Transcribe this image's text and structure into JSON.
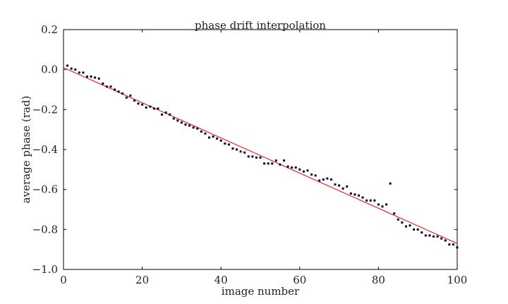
{
  "chart_data": {
    "type": "scatter",
    "title": "phase drift interpolation",
    "xlabel": "image number",
    "ylabel": "average phase (rad)",
    "xlim": [
      0,
      100
    ],
    "ylim": [
      -1.0,
      0.2
    ],
    "x_ticks": [
      0,
      20,
      40,
      60,
      80,
      100
    ],
    "y_ticks": [
      0.2,
      0.0,
      -0.2,
      -0.4,
      -0.6,
      -0.8,
      -1.0
    ],
    "x_tick_labels": [
      "0",
      "20",
      "40",
      "60",
      "80",
      "100"
    ],
    "y_tick_labels": [
      "0.2",
      "0.0",
      "−0.2",
      "−0.4",
      "−0.6",
      "−0.8",
      "−1.0"
    ],
    "grid": false,
    "series": [
      {
        "kind": "points",
        "color": "#000033",
        "x": [
          1,
          2,
          3,
          4,
          5,
          6,
          7,
          8,
          9,
          10,
          11,
          12,
          13,
          14,
          15,
          16,
          17,
          18,
          19,
          20,
          21,
          22,
          23,
          24,
          25,
          26,
          27,
          28,
          29,
          30,
          31,
          32,
          33,
          34,
          35,
          36,
          37,
          38,
          39,
          40,
          41,
          42,
          43,
          44,
          45,
          46,
          47,
          48,
          49,
          50,
          51,
          52,
          53,
          54,
          55,
          56,
          57,
          58,
          59,
          60,
          61,
          62,
          63,
          64,
          65,
          66,
          67,
          68,
          69,
          70,
          71,
          72,
          73,
          74,
          75,
          76,
          77,
          78,
          79,
          80,
          81,
          82,
          83,
          84,
          85,
          86,
          87,
          88,
          89,
          90,
          91,
          92,
          93,
          94,
          95,
          96,
          97,
          98,
          99,
          100
        ],
        "y": [
          0.02,
          0.005,
          0.0,
          -0.015,
          -0.015,
          -0.035,
          -0.035,
          -0.04,
          -0.045,
          -0.07,
          -0.085,
          -0.085,
          -0.1,
          -0.11,
          -0.12,
          -0.14,
          -0.13,
          -0.155,
          -0.17,
          -0.175,
          -0.19,
          -0.185,
          -0.195,
          -0.195,
          -0.225,
          -0.215,
          -0.225,
          -0.245,
          -0.255,
          -0.265,
          -0.275,
          -0.28,
          -0.29,
          -0.295,
          -0.31,
          -0.32,
          -0.34,
          -0.335,
          -0.345,
          -0.355,
          -0.37,
          -0.375,
          -0.395,
          -0.4,
          -0.41,
          -0.415,
          -0.435,
          -0.435,
          -0.44,
          -0.44,
          -0.47,
          -0.47,
          -0.47,
          -0.455,
          -0.475,
          -0.455,
          -0.485,
          -0.49,
          -0.49,
          -0.5,
          -0.51,
          -0.505,
          -0.525,
          -0.53,
          -0.555,
          -0.55,
          -0.545,
          -0.55,
          -0.575,
          -0.58,
          -0.595,
          -0.585,
          -0.62,
          -0.625,
          -0.63,
          -0.64,
          -0.655,
          -0.655,
          -0.655,
          -0.675,
          -0.685,
          -0.675,
          -0.57,
          -0.72,
          -0.75,
          -0.765,
          -0.785,
          -0.78,
          -0.8,
          -0.8,
          -0.815,
          -0.83,
          -0.83,
          -0.835,
          -0.835,
          -0.845,
          -0.855,
          -0.875,
          -0.875,
          -0.89
        ]
      },
      {
        "kind": "fit-line",
        "color": "#e8140f",
        "x": [
          0,
          100
        ],
        "y": [
          0.01,
          -0.87
        ]
      }
    ]
  }
}
